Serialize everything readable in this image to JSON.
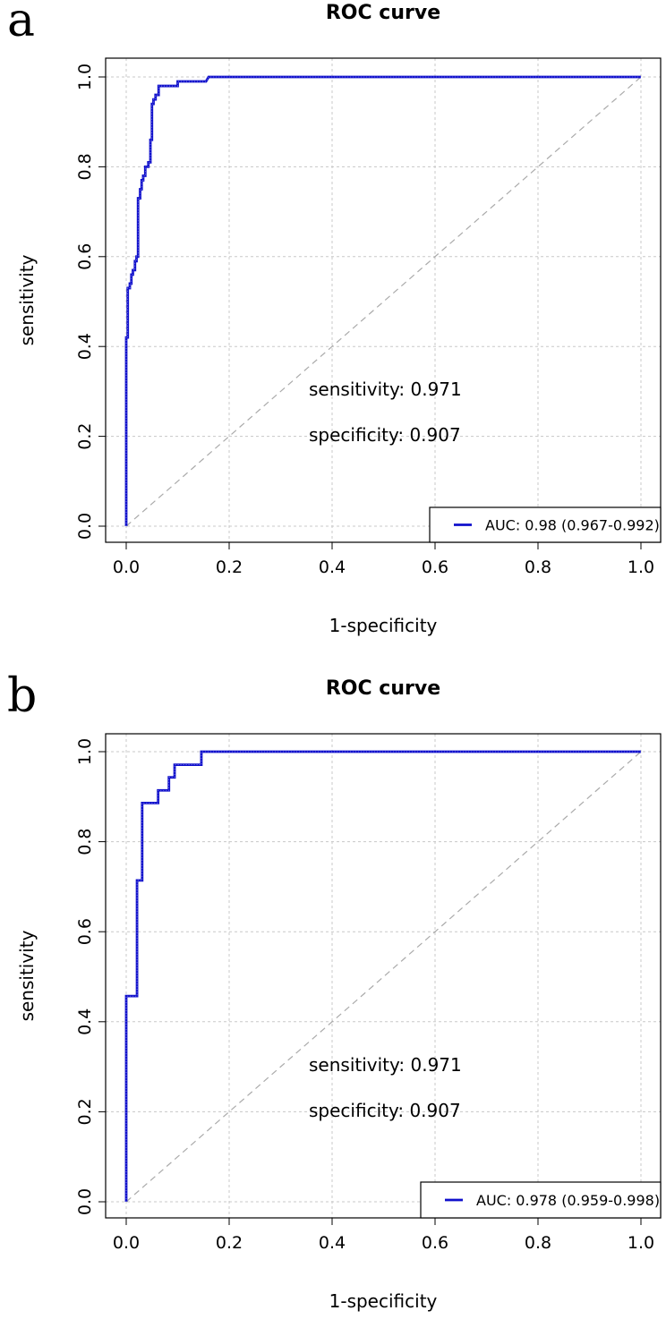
{
  "chart_data": [
    {
      "type": "line",
      "panel_label": "a",
      "title": "ROC curve",
      "xlabel": "1-specificity",
      "ylabel": "sensitivity",
      "xlim": [
        0.0,
        1.0
      ],
      "ylim": [
        0.0,
        1.0
      ],
      "xticks": [
        "0.0",
        "0.2",
        "0.4",
        "0.6",
        "0.8",
        "1.0"
      ],
      "yticks": [
        "0.0",
        "0.2",
        "0.4",
        "0.6",
        "0.8",
        "1.0"
      ],
      "grid": true,
      "legend_position": "bottom-right",
      "annotations": [
        "sensitivity: 0.971",
        "specificity: 0.907"
      ],
      "reference_line": {
        "name": "chance",
        "x": [
          0,
          1
        ],
        "y": [
          0,
          1
        ]
      },
      "series": [
        {
          "name": "AUC: 0.98 (0.967-0.992)",
          "color": "#1010cc",
          "x": [
            0,
            0,
            0.003,
            0.003,
            0.007,
            0.007,
            0.01,
            0.01,
            0.013,
            0.013,
            0.017,
            0.017,
            0.02,
            0.02,
            0.023,
            0.023,
            0.027,
            0.027,
            0.03,
            0.03,
            0.033,
            0.033,
            0.037,
            0.037,
            0.04,
            0.04,
            0.043,
            0.043,
            0.047,
            0.047,
            0.05,
            0.05,
            0.053,
            0.053,
            0.057,
            0.057,
            0.063,
            0.063,
            0.07,
            0.07,
            0.1,
            0.1,
            0.155,
            0.16,
            1.0
          ],
          "y": [
            0,
            0.42,
            0.42,
            0.53,
            0.53,
            0.54,
            0.54,
            0.56,
            0.56,
            0.57,
            0.57,
            0.59,
            0.59,
            0.6,
            0.6,
            0.73,
            0.73,
            0.75,
            0.75,
            0.77,
            0.77,
            0.78,
            0.78,
            0.8,
            0.8,
            0.8,
            0.8,
            0.81,
            0.81,
            0.86,
            0.86,
            0.94,
            0.94,
            0.95,
            0.95,
            0.96,
            0.96,
            0.98,
            0.98,
            0.98,
            0.98,
            0.99,
            0.99,
            1.0,
            1.0
          ]
        }
      ]
    },
    {
      "type": "line",
      "panel_label": "b",
      "title": "ROC curve",
      "xlabel": "1-specificity",
      "ylabel": "sensitivity",
      "xlim": [
        0.0,
        1.0
      ],
      "ylim": [
        0.0,
        1.0
      ],
      "xticks": [
        "0.0",
        "0.2",
        "0.4",
        "0.6",
        "0.8",
        "1.0"
      ],
      "yticks": [
        "0.0",
        "0.2",
        "0.4",
        "0.6",
        "0.8",
        "1.0"
      ],
      "grid": true,
      "legend_position": "bottom-right",
      "annotations": [
        "sensitivity: 0.971",
        "specificity: 0.907"
      ],
      "reference_line": {
        "name": "chance",
        "x": [
          0,
          1
        ],
        "y": [
          0,
          1
        ]
      },
      "series": [
        {
          "name": "AUC: 0.978 (0.959-0.998)",
          "color": "#1010cc",
          "x": [
            0,
            0,
            0.021,
            0.021,
            0.031,
            0.031,
            0.062,
            0.062,
            0.083,
            0.083,
            0.094,
            0.094,
            0.146,
            0.146,
            1.0
          ],
          "y": [
            0,
            0.457,
            0.457,
            0.714,
            0.714,
            0.886,
            0.886,
            0.914,
            0.914,
            0.943,
            0.943,
            0.971,
            0.971,
            1.0,
            1.0
          ]
        }
      ]
    }
  ],
  "colors": {
    "curve": "#1010cc",
    "grid": "#c8c8c8",
    "diagonal": "#aaaaaa",
    "axis": "#000000"
  }
}
